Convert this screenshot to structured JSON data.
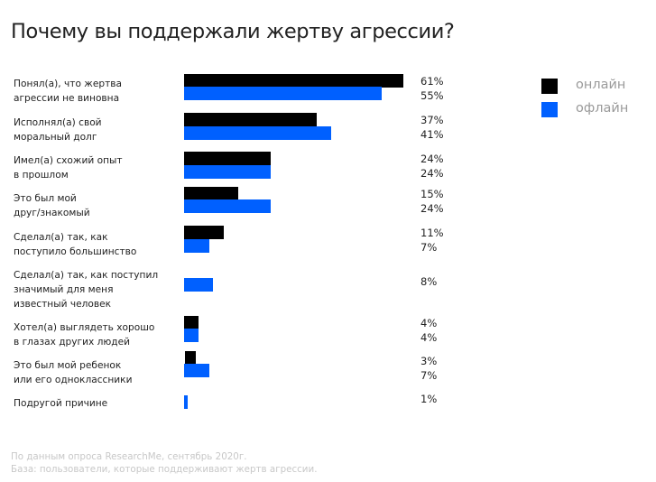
{
  "chart_data": {
    "type": "bar",
    "orientation": "horizontal",
    "title": "Почему вы поддержали жертву агрессии?",
    "categories": [
      "Понял(а), что жертва\nагрессии не виновна",
      "Исполнял(а) свой\nморальный долг",
      "Имел(а) схожий опыт\nв прошлом",
      "Это был мой\nдруг/знакомый",
      "Сделал(а) так, как\nпоступило большинство",
      "Сделал(а) так, как поступил\nзначимый для меня\nизвестный человек",
      "Хотел(а) выглядеть хорошо\nв глазах других людей",
      "Это был мой ребенок\nили его одноклассники",
      "Подругой причине"
    ],
    "series": [
      {
        "name": "онлайн",
        "color": "#000000",
        "values": [
          61,
          37,
          24,
          15,
          11,
          null,
          4,
          3,
          null
        ]
      },
      {
        "name": "офлайн",
        "color": "#0060FF",
        "values": [
          55,
          41,
          24,
          24,
          7,
          8,
          4,
          7,
          1
        ]
      }
    ],
    "value_labels": [
      [
        "61%",
        "55%"
      ],
      [
        "37%",
        "41%"
      ],
      [
        "24%",
        "24%"
      ],
      [
        "15%",
        "24%"
      ],
      [
        "11%",
        "7%"
      ],
      [
        "8%"
      ],
      [
        "4%",
        "4%"
      ],
      [
        "3%",
        "7%"
      ],
      [
        "1%"
      ]
    ],
    "unit": "%",
    "legend_position": "top-right",
    "grid": false
  },
  "footnotes": [
    "По данным опроса ResearchMe, сентябрь 2020г.",
    "База: пользователи, которые поддерживают жертв агрессии."
  ]
}
